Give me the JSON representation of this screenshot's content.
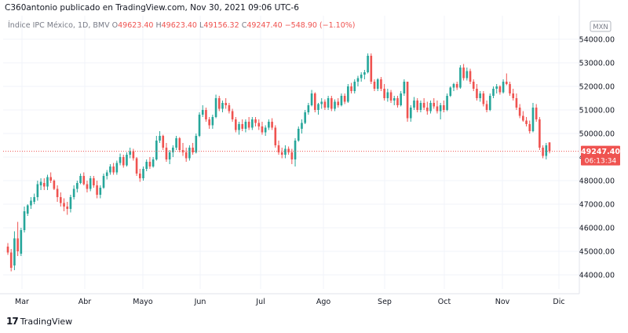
{
  "header": {
    "title": "C360antonio publicado en TradingView.com, Nov 30, 2021 09:06 UTC-6"
  },
  "legend": {
    "symbol": "Índice IPC México, 1D, BMV",
    "o_label": "O",
    "o_value": "49623.40",
    "h_label": "H",
    "h_value": "49623.40",
    "l_label": "L",
    "l_value": "49156.32",
    "c_label": "C",
    "c_value": "49247.40",
    "change": "−548.90 (−1.10%)"
  },
  "currency_badge": "MXN",
  "price_label": {
    "price": "49247.40",
    "countdown": "06:13:34"
  },
  "brand": {
    "logo": "17",
    "name": "TradingView"
  },
  "colors": {
    "up": "#26a69a",
    "down": "#ef5350",
    "grid": "#f0f3fa",
    "text": "#131722",
    "axis_text": "#131722"
  },
  "chart_data": {
    "type": "candlestick",
    "y_ticks": [
      "44000.00",
      "45000.00",
      "46000.00",
      "47000.00",
      "48000.00",
      "49000.00",
      "50000.00",
      "51000.00",
      "52000.00",
      "53000.00",
      "54000.00"
    ],
    "ylim": [
      43400,
      55000
    ],
    "x_ticks": [
      "Mar",
      "Abr",
      "Mayo",
      "Jun",
      "Jul",
      "Ago",
      "Sep",
      "Oct",
      "Nov",
      "Dic"
    ],
    "last_price": 49247.4,
    "candles": [
      {
        "o": 45200,
        "h": 45350,
        "l": 44850,
        "c": 44950
      },
      {
        "o": 44950,
        "h": 45100,
        "l": 44150,
        "c": 44300
      },
      {
        "o": 44400,
        "h": 45850,
        "l": 44200,
        "c": 45550
      },
      {
        "o": 45550,
        "h": 46250,
        "l": 44800,
        "c": 45000
      },
      {
        "o": 44900,
        "h": 46000,
        "l": 44800,
        "c": 45900
      },
      {
        "o": 45900,
        "h": 46900,
        "l": 45800,
        "c": 46700
      },
      {
        "o": 46600,
        "h": 47000,
        "l": 46500,
        "c": 46950
      },
      {
        "o": 46950,
        "h": 47300,
        "l": 46800,
        "c": 47150
      },
      {
        "o": 47100,
        "h": 47450,
        "l": 47000,
        "c": 47300
      },
      {
        "o": 47300,
        "h": 48000,
        "l": 47150,
        "c": 47850
      },
      {
        "o": 47800,
        "h": 48100,
        "l": 47600,
        "c": 47950
      },
      {
        "o": 47900,
        "h": 48100,
        "l": 47600,
        "c": 47750
      },
      {
        "o": 47750,
        "h": 48250,
        "l": 47600,
        "c": 48150
      },
      {
        "o": 48150,
        "h": 48350,
        "l": 47900,
        "c": 48000
      },
      {
        "o": 48000,
        "h": 48050,
        "l": 47600,
        "c": 47650
      },
      {
        "o": 47650,
        "h": 47800,
        "l": 47100,
        "c": 47300
      },
      {
        "o": 47300,
        "h": 47500,
        "l": 46900,
        "c": 47050
      },
      {
        "o": 47050,
        "h": 47250,
        "l": 46700,
        "c": 46900
      },
      {
        "o": 46900,
        "h": 47100,
        "l": 46550,
        "c": 46800
      },
      {
        "o": 46800,
        "h": 47400,
        "l": 46650,
        "c": 47300
      },
      {
        "o": 47300,
        "h": 47800,
        "l": 47200,
        "c": 47650
      },
      {
        "o": 47650,
        "h": 48000,
        "l": 47500,
        "c": 47900
      },
      {
        "o": 47900,
        "h": 48300,
        "l": 47850,
        "c": 48200
      },
      {
        "o": 48200,
        "h": 48350,
        "l": 47800,
        "c": 47850
      },
      {
        "o": 47850,
        "h": 48000,
        "l": 47500,
        "c": 47650
      },
      {
        "o": 47650,
        "h": 48200,
        "l": 47550,
        "c": 48100
      },
      {
        "o": 48100,
        "h": 48200,
        "l": 47700,
        "c": 47800
      },
      {
        "o": 47800,
        "h": 48000,
        "l": 47250,
        "c": 47400
      },
      {
        "o": 47400,
        "h": 47800,
        "l": 47250,
        "c": 47700
      },
      {
        "o": 47700,
        "h": 48300,
        "l": 47650,
        "c": 48200
      },
      {
        "o": 48200,
        "h": 48450,
        "l": 48050,
        "c": 48350
      },
      {
        "o": 48350,
        "h": 48700,
        "l": 48250,
        "c": 48600
      },
      {
        "o": 48600,
        "h": 48750,
        "l": 48250,
        "c": 48350
      },
      {
        "o": 48350,
        "h": 48850,
        "l": 48250,
        "c": 48750
      },
      {
        "o": 48750,
        "h": 49150,
        "l": 48650,
        "c": 49000
      },
      {
        "o": 49000,
        "h": 49100,
        "l": 48550,
        "c": 48650
      },
      {
        "o": 48650,
        "h": 49200,
        "l": 48600,
        "c": 49100
      },
      {
        "o": 49100,
        "h": 49400,
        "l": 48950,
        "c": 49250
      },
      {
        "o": 49250,
        "h": 49350,
        "l": 48850,
        "c": 48950
      },
      {
        "o": 48950,
        "h": 49000,
        "l": 48200,
        "c": 48300
      },
      {
        "o": 48300,
        "h": 48500,
        "l": 47950,
        "c": 48100
      },
      {
        "o": 48100,
        "h": 48600,
        "l": 48000,
        "c": 48500
      },
      {
        "o": 48500,
        "h": 48900,
        "l": 48400,
        "c": 48800
      },
      {
        "o": 48800,
        "h": 49000,
        "l": 48500,
        "c": 48600
      },
      {
        "o": 48600,
        "h": 49000,
        "l": 48550,
        "c": 48900
      },
      {
        "o": 48900,
        "h": 49900,
        "l": 48850,
        "c": 49700
      },
      {
        "o": 49700,
        "h": 50100,
        "l": 49600,
        "c": 49900
      },
      {
        "o": 49900,
        "h": 49950,
        "l": 49300,
        "c": 49400
      },
      {
        "o": 49400,
        "h": 49600,
        "l": 48800,
        "c": 48900
      },
      {
        "o": 48900,
        "h": 49300,
        "l": 48700,
        "c": 49200
      },
      {
        "o": 49200,
        "h": 49500,
        "l": 49000,
        "c": 49400
      },
      {
        "o": 49400,
        "h": 49900,
        "l": 49300,
        "c": 49800
      },
      {
        "o": 49800,
        "h": 49850,
        "l": 49200,
        "c": 49300
      },
      {
        "o": 49300,
        "h": 49600,
        "l": 49050,
        "c": 49200
      },
      {
        "o": 49200,
        "h": 49400,
        "l": 48800,
        "c": 48950
      },
      {
        "o": 48950,
        "h": 49500,
        "l": 48850,
        "c": 49400
      },
      {
        "o": 49400,
        "h": 49600,
        "l": 49100,
        "c": 49200
      },
      {
        "o": 49200,
        "h": 50000,
        "l": 49150,
        "c": 49900
      },
      {
        "o": 49900,
        "h": 50900,
        "l": 49850,
        "c": 50800
      },
      {
        "o": 50800,
        "h": 51200,
        "l": 50700,
        "c": 51000
      },
      {
        "o": 51000,
        "h": 51100,
        "l": 50500,
        "c": 50600
      },
      {
        "o": 50600,
        "h": 50700,
        "l": 50200,
        "c": 50350
      },
      {
        "o": 50350,
        "h": 50800,
        "l": 50200,
        "c": 50700
      },
      {
        "o": 50700,
        "h": 51650,
        "l": 50650,
        "c": 51500
      },
      {
        "o": 51500,
        "h": 51600,
        "l": 50950,
        "c": 51050
      },
      {
        "o": 51050,
        "h": 51400,
        "l": 50900,
        "c": 51300
      },
      {
        "o": 51300,
        "h": 51500,
        "l": 51050,
        "c": 51200
      },
      {
        "o": 51200,
        "h": 51300,
        "l": 50850,
        "c": 50950
      },
      {
        "o": 50950,
        "h": 51050,
        "l": 50500,
        "c": 50600
      },
      {
        "o": 50600,
        "h": 50700,
        "l": 50050,
        "c": 50150
      },
      {
        "o": 50150,
        "h": 50500,
        "l": 49950,
        "c": 50400
      },
      {
        "o": 50400,
        "h": 50600,
        "l": 50100,
        "c": 50200
      },
      {
        "o": 50200,
        "h": 50600,
        "l": 50050,
        "c": 50500
      },
      {
        "o": 50500,
        "h": 50700,
        "l": 50150,
        "c": 50250
      },
      {
        "o": 50250,
        "h": 50700,
        "l": 50150,
        "c": 50600
      },
      {
        "o": 50600,
        "h": 50700,
        "l": 50300,
        "c": 50450
      },
      {
        "o": 50450,
        "h": 50600,
        "l": 50150,
        "c": 50300
      },
      {
        "o": 50300,
        "h": 50500,
        "l": 49950,
        "c": 50050
      },
      {
        "o": 50050,
        "h": 50350,
        "l": 49900,
        "c": 50250
      },
      {
        "o": 50250,
        "h": 50600,
        "l": 50150,
        "c": 50500
      },
      {
        "o": 50500,
        "h": 50650,
        "l": 50150,
        "c": 50250
      },
      {
        "o": 50250,
        "h": 50350,
        "l": 49400,
        "c": 49500
      },
      {
        "o": 49500,
        "h": 49700,
        "l": 49100,
        "c": 49200
      },
      {
        "o": 49200,
        "h": 49400,
        "l": 48950,
        "c": 49100
      },
      {
        "o": 49100,
        "h": 49500,
        "l": 48950,
        "c": 49350
      },
      {
        "o": 49350,
        "h": 49450,
        "l": 49100,
        "c": 49200
      },
      {
        "o": 49200,
        "h": 49350,
        "l": 48700,
        "c": 48900
      },
      {
        "o": 48900,
        "h": 49800,
        "l": 48600,
        "c": 49700
      },
      {
        "o": 49700,
        "h": 50300,
        "l": 49650,
        "c": 50200
      },
      {
        "o": 50200,
        "h": 50600,
        "l": 50000,
        "c": 50450
      },
      {
        "o": 50450,
        "h": 51000,
        "l": 50400,
        "c": 50900
      },
      {
        "o": 50900,
        "h": 51300,
        "l": 50800,
        "c": 51200
      },
      {
        "o": 51200,
        "h": 51850,
        "l": 51150,
        "c": 51700
      },
      {
        "o": 51700,
        "h": 51750,
        "l": 50900,
        "c": 51000
      },
      {
        "o": 51000,
        "h": 51300,
        "l": 50800,
        "c": 51250
      },
      {
        "o": 51250,
        "h": 51500,
        "l": 51050,
        "c": 51350
      },
      {
        "o": 51350,
        "h": 51450,
        "l": 51000,
        "c": 51100
      },
      {
        "o": 51100,
        "h": 51600,
        "l": 51000,
        "c": 51500
      },
      {
        "o": 51500,
        "h": 51600,
        "l": 50950,
        "c": 51050
      },
      {
        "o": 51050,
        "h": 51450,
        "l": 50950,
        "c": 51350
      },
      {
        "o": 51350,
        "h": 51500,
        "l": 51100,
        "c": 51200
      },
      {
        "o": 51200,
        "h": 51700,
        "l": 51150,
        "c": 51600
      },
      {
        "o": 51600,
        "h": 51700,
        "l": 51250,
        "c": 51350
      },
      {
        "o": 51350,
        "h": 52100,
        "l": 51300,
        "c": 52000
      },
      {
        "o": 52000,
        "h": 52150,
        "l": 51700,
        "c": 51800
      },
      {
        "o": 51800,
        "h": 52300,
        "l": 51700,
        "c": 52200
      },
      {
        "o": 52200,
        "h": 52450,
        "l": 52000,
        "c": 52350
      },
      {
        "o": 52350,
        "h": 52600,
        "l": 52200,
        "c": 52500
      },
      {
        "o": 52500,
        "h": 52700,
        "l": 52300,
        "c": 52600
      },
      {
        "o": 52600,
        "h": 53400,
        "l": 52550,
        "c": 53300
      },
      {
        "o": 53300,
        "h": 53400,
        "l": 52100,
        "c": 52200
      },
      {
        "o": 52200,
        "h": 52300,
        "l": 51800,
        "c": 51900
      },
      {
        "o": 51900,
        "h": 52350,
        "l": 51800,
        "c": 52300
      },
      {
        "o": 52300,
        "h": 52400,
        "l": 51800,
        "c": 51900
      },
      {
        "o": 51900,
        "h": 52100,
        "l": 51400,
        "c": 51500
      },
      {
        "o": 51500,
        "h": 51900,
        "l": 51350,
        "c": 51750
      },
      {
        "o": 51750,
        "h": 51850,
        "l": 51300,
        "c": 51400
      },
      {
        "o": 51400,
        "h": 51600,
        "l": 51200,
        "c": 51500
      },
      {
        "o": 51500,
        "h": 51600,
        "l": 51100,
        "c": 51200
      },
      {
        "o": 51200,
        "h": 51800,
        "l": 51150,
        "c": 51700
      },
      {
        "o": 51700,
        "h": 52300,
        "l": 51600,
        "c": 52200
      },
      {
        "o": 52200,
        "h": 52200,
        "l": 50500,
        "c": 50650
      },
      {
        "o": 50650,
        "h": 51200,
        "l": 50500,
        "c": 51100
      },
      {
        "o": 51100,
        "h": 51550,
        "l": 51000,
        "c": 51400
      },
      {
        "o": 51400,
        "h": 51500,
        "l": 50900,
        "c": 51000
      },
      {
        "o": 51000,
        "h": 51400,
        "l": 50900,
        "c": 51300
      },
      {
        "o": 51300,
        "h": 51500,
        "l": 51000,
        "c": 51100
      },
      {
        "o": 51100,
        "h": 51350,
        "l": 50800,
        "c": 50950
      },
      {
        "o": 50950,
        "h": 51400,
        "l": 50850,
        "c": 51300
      },
      {
        "o": 51300,
        "h": 51500,
        "l": 51050,
        "c": 51150
      },
      {
        "o": 51150,
        "h": 51400,
        "l": 50850,
        "c": 50950
      },
      {
        "o": 50950,
        "h": 51300,
        "l": 50600,
        "c": 51200
      },
      {
        "o": 51200,
        "h": 51400,
        "l": 50900,
        "c": 51000
      },
      {
        "o": 51000,
        "h": 51700,
        "l": 50950,
        "c": 51600
      },
      {
        "o": 51600,
        "h": 52000,
        "l": 51550,
        "c": 51950
      },
      {
        "o": 51950,
        "h": 52150,
        "l": 51800,
        "c": 52100
      },
      {
        "o": 52100,
        "h": 52200,
        "l": 51850,
        "c": 51950
      },
      {
        "o": 51950,
        "h": 52900,
        "l": 51900,
        "c": 52800
      },
      {
        "o": 52800,
        "h": 52950,
        "l": 52250,
        "c": 52350
      },
      {
        "o": 52350,
        "h": 52800,
        "l": 52250,
        "c": 52650
      },
      {
        "o": 52650,
        "h": 52750,
        "l": 52100,
        "c": 52200
      },
      {
        "o": 52200,
        "h": 52300,
        "l": 51800,
        "c": 51900
      },
      {
        "o": 51900,
        "h": 52100,
        "l": 51400,
        "c": 51500
      },
      {
        "o": 51500,
        "h": 51800,
        "l": 51350,
        "c": 51700
      },
      {
        "o": 51700,
        "h": 51800,
        "l": 51150,
        "c": 51250
      },
      {
        "o": 51250,
        "h": 51400,
        "l": 50900,
        "c": 51000
      },
      {
        "o": 51000,
        "h": 51700,
        "l": 50950,
        "c": 51600
      },
      {
        "o": 51600,
        "h": 52000,
        "l": 51500,
        "c": 51900
      },
      {
        "o": 51900,
        "h": 52100,
        "l": 51700,
        "c": 52000
      },
      {
        "o": 52000,
        "h": 52050,
        "l": 51650,
        "c": 51750
      },
      {
        "o": 51750,
        "h": 52300,
        "l": 51700,
        "c": 52200
      },
      {
        "o": 52200,
        "h": 52550,
        "l": 52050,
        "c": 52100
      },
      {
        "o": 52100,
        "h": 52200,
        "l": 51600,
        "c": 51700
      },
      {
        "o": 51700,
        "h": 51900,
        "l": 51400,
        "c": 51500
      },
      {
        "o": 51500,
        "h": 51700,
        "l": 51000,
        "c": 51100
      },
      {
        "o": 51100,
        "h": 51250,
        "l": 50650,
        "c": 50750
      },
      {
        "o": 50750,
        "h": 50950,
        "l": 50500,
        "c": 50550
      },
      {
        "o": 50550,
        "h": 50700,
        "l": 50300,
        "c": 50400
      },
      {
        "o": 50400,
        "h": 50550,
        "l": 50000,
        "c": 50100
      },
      {
        "o": 50100,
        "h": 51300,
        "l": 50050,
        "c": 51100
      },
      {
        "o": 51100,
        "h": 51250,
        "l": 50500,
        "c": 50600
      },
      {
        "o": 50600,
        "h": 50700,
        "l": 49300,
        "c": 49400
      },
      {
        "o": 49400,
        "h": 49500,
        "l": 48950,
        "c": 49050
      },
      {
        "o": 49050,
        "h": 49600,
        "l": 48900,
        "c": 49500
      },
      {
        "o": 49623.4,
        "h": 49623.4,
        "l": 49156.32,
        "c": 49247.4
      }
    ]
  }
}
